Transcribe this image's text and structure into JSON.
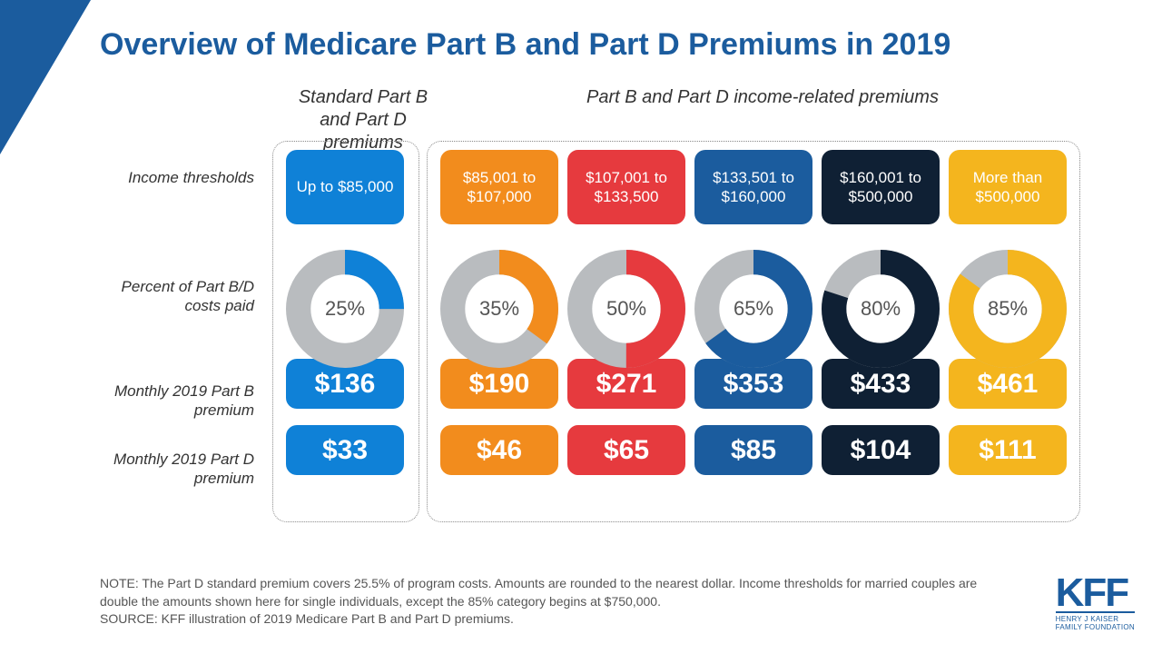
{
  "title": "Overview of Medicare Part B and Part D Premiums in 2019",
  "headers": {
    "standard": "Standard Part B and Part D premiums",
    "income": "Part B and Part D income-related premiums"
  },
  "row_labels": {
    "threshold": "Income thresholds",
    "percent": "Percent of Part B/D costs paid",
    "part_b": "Monthly 2019 Part B premium",
    "part_d": "Monthly 2019 Part D premium"
  },
  "donut": {
    "ring_bg": "#b9bcbf",
    "inner_ratio": 0.58
  },
  "tiers": [
    {
      "threshold": "Up to $85,000",
      "percent": 25,
      "percent_label": "25%",
      "part_b": "$136",
      "part_d": "$33",
      "color": "#0f81d7",
      "text_color": "#ffffff"
    },
    {
      "threshold": "$85,001 to $107,000",
      "percent": 35,
      "percent_label": "35%",
      "part_b": "$190",
      "part_d": "$46",
      "color": "#f28c1d",
      "text_color": "#ffffff"
    },
    {
      "threshold": "$107,001 to $133,500",
      "percent": 50,
      "percent_label": "50%",
      "part_b": "$271",
      "part_d": "$65",
      "color": "#e63a3e",
      "text_color": "#ffffff"
    },
    {
      "threshold": "$133,501 to $160,000",
      "percent": 65,
      "percent_label": "65%",
      "part_b": "$353",
      "part_d": "$85",
      "color": "#1b5c9e",
      "text_color": "#ffffff"
    },
    {
      "threshold": "$160,001 to $500,000",
      "percent": 80,
      "percent_label": "80%",
      "part_b": "$433",
      "part_d": "$104",
      "color": "#0f2034",
      "text_color": "#ffffff"
    },
    {
      "threshold": "More than $500,000",
      "percent": 85,
      "percent_label": "85%",
      "part_b": "$461",
      "part_d": "$111",
      "color": "#f4b51e",
      "text_color": "#ffffff"
    }
  ],
  "footnote": {
    "note": "NOTE: The Part D standard premium covers 25.5% of program costs. Amounts are rounded to the nearest dollar. Income thresholds for married couples are double the amounts shown here for single individuals, except the 85% category begins at $750,000.",
    "source": "SOURCE: KFF illustration of 2019 Medicare Part B and Part D premiums."
  },
  "logo": {
    "main": "KFF",
    "sub1": "HENRY J KAISER",
    "sub2": "FAMILY FOUNDATION"
  },
  "colors": {
    "brand": "#1b5c9e",
    "background": "#ffffff"
  }
}
